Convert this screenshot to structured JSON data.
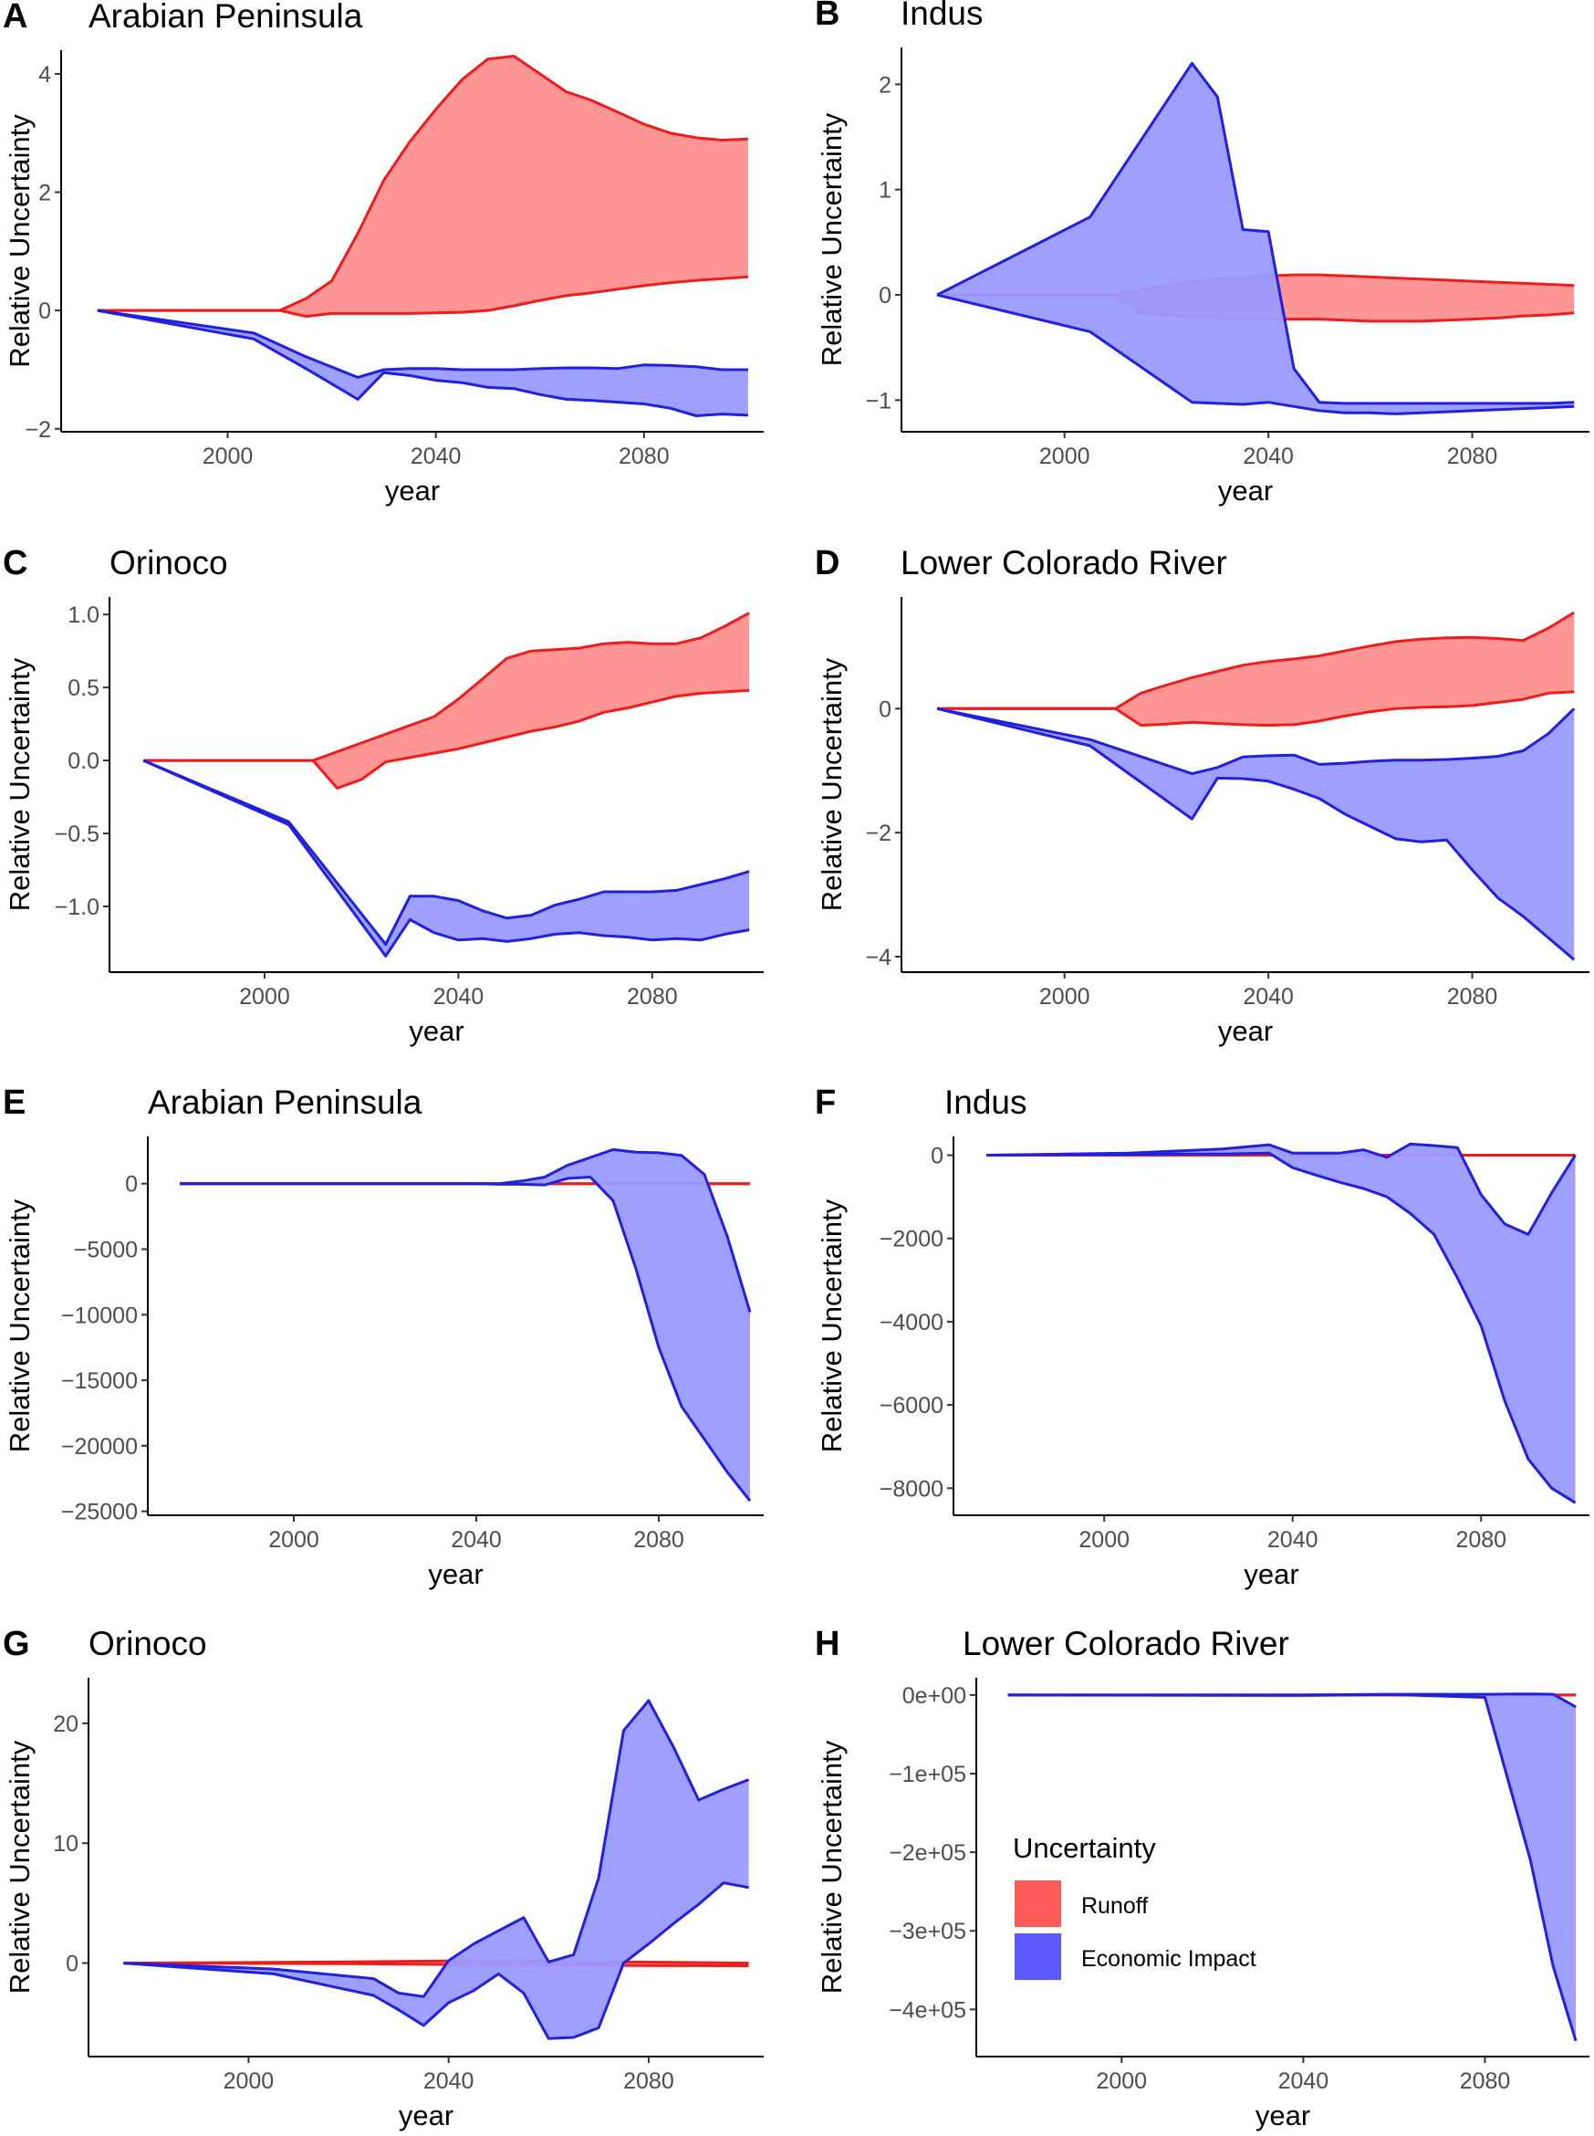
{
  "legend": {
    "title": "Uncertainty",
    "items": [
      {
        "label": "Runoff",
        "color": "#ff5a5a"
      },
      {
        "label": "Economic Impact",
        "color": "#5a5aff"
      }
    ]
  },
  "colors": {
    "runoff_line": "#ee1c1c",
    "runoff_fill": "#ff9090",
    "econ_line": "#2020dd",
    "econ_fill": "#9a9aff"
  },
  "chart_data": [
    {
      "id": "A",
      "type": "area",
      "letter": "A",
      "title": "Arabian Peninsula",
      "xlabel": "year",
      "ylabel": "Relative Uncertainty",
      "xlim": [
        1968,
        2103
      ],
      "ylim": [
        -2.05,
        4.4
      ],
      "xticks": [
        2000,
        2040,
        2080
      ],
      "yticks": [
        -2,
        0,
        2,
        4
      ],
      "ytick_labels": [
        "−2",
        "0",
        "2",
        "4"
      ],
      "series": [
        {
          "name": "Runoff",
          "x": [
            1975,
            2005,
            2010,
            2015,
            2020,
            2025,
            2030,
            2035,
            2040,
            2045,
            2050,
            2055,
            2060,
            2065,
            2070,
            2075,
            2080,
            2085,
            2090,
            2095,
            2100
          ],
          "upper": [
            0,
            0,
            0,
            0.2,
            0.5,
            1.3,
            2.2,
            2.85,
            3.4,
            3.9,
            4.25,
            4.3,
            4.0,
            3.7,
            3.55,
            3.35,
            3.15,
            3.0,
            2.92,
            2.88,
            2.9
          ],
          "lower": [
            0,
            0,
            0,
            -0.1,
            -0.05,
            -0.05,
            -0.05,
            -0.05,
            -0.04,
            -0.03,
            0,
            0.08,
            0.17,
            0.25,
            0.3,
            0.36,
            0.42,
            0.47,
            0.51,
            0.54,
            0.57
          ]
        },
        {
          "name": "Economic Impact",
          "x": [
            1975,
            2005,
            2015,
            2025,
            2030,
            2035,
            2040,
            2045,
            2050,
            2055,
            2060,
            2065,
            2070,
            2075,
            2080,
            2085,
            2090,
            2095,
            2100
          ],
          "upper": [
            0,
            -0.38,
            -0.78,
            -1.13,
            -1.0,
            -0.98,
            -0.98,
            -1.0,
            -1.0,
            -1.0,
            -0.98,
            -0.97,
            -0.97,
            -0.98,
            -0.92,
            -0.93,
            -0.95,
            -1.0,
            -1.0
          ],
          "lower": [
            0,
            -0.48,
            -0.98,
            -1.5,
            -1.05,
            -1.1,
            -1.18,
            -1.22,
            -1.3,
            -1.32,
            -1.42,
            -1.5,
            -1.52,
            -1.55,
            -1.58,
            -1.65,
            -1.78,
            -1.75,
            -1.77
          ]
        }
      ]
    },
    {
      "id": "B",
      "type": "area",
      "letter": "B",
      "title": "Indus",
      "xlabel": "year",
      "ylabel": "Relative Uncertainty",
      "xlim": [
        1968,
        2103
      ],
      "ylim": [
        -1.3,
        2.35
      ],
      "xticks": [
        2000,
        2040,
        2080
      ],
      "yticks": [
        -1,
        0,
        1,
        2
      ],
      "ytick_labels": [
        "−1",
        "0",
        "1",
        "2"
      ],
      "series": [
        {
          "name": "Runoff",
          "x": [
            1975,
            2010,
            2015,
            2020,
            2025,
            2030,
            2035,
            2040,
            2045,
            2050,
            2055,
            2060,
            2065,
            2070,
            2075,
            2080,
            2085,
            2090,
            2095,
            2100
          ],
          "upper": [
            0,
            0,
            0.05,
            0.08,
            0.12,
            0.15,
            0.17,
            0.18,
            0.19,
            0.19,
            0.18,
            0.17,
            0.16,
            0.15,
            0.14,
            0.13,
            0.12,
            0.11,
            0.1,
            0.09
          ],
          "lower": [
            0,
            0,
            -0.17,
            -0.19,
            -0.21,
            -0.22,
            -0.23,
            -0.23,
            -0.23,
            -0.23,
            -0.24,
            -0.25,
            -0.25,
            -0.25,
            -0.24,
            -0.23,
            -0.22,
            -0.2,
            -0.19,
            -0.17
          ]
        },
        {
          "name": "Economic Impact",
          "x": [
            1975,
            2005,
            2025,
            2030,
            2035,
            2040,
            2045,
            2050,
            2055,
            2060,
            2065,
            2070,
            2075,
            2080,
            2085,
            2090,
            2095,
            2100
          ],
          "upper": [
            0,
            0.74,
            2.2,
            1.88,
            0.62,
            0.6,
            -0.7,
            -1.02,
            -1.03,
            -1.03,
            -1.03,
            -1.03,
            -1.03,
            -1.03,
            -1.03,
            -1.03,
            -1.03,
            -1.02
          ],
          "lower": [
            0,
            -0.35,
            -1.02,
            -1.03,
            -1.04,
            -1.02,
            -1.06,
            -1.1,
            -1.12,
            -1.12,
            -1.13,
            -1.12,
            -1.11,
            -1.1,
            -1.09,
            -1.08,
            -1.07,
            -1.06
          ]
        }
      ]
    },
    {
      "id": "C",
      "type": "area",
      "letter": "C",
      "title": "Orinoco",
      "xlabel": "year",
      "ylabel": "Relative Uncertainty",
      "xlim": [
        1968,
        2103
      ],
      "ylim": [
        -1.45,
        1.12
      ],
      "xticks": [
        2000,
        2040,
        2080
      ],
      "yticks": [
        -1.0,
        -0.5,
        0.0,
        0.5,
        1.0
      ],
      "ytick_labels": [
        "−1.0",
        "−0.5",
        "0.0",
        "0.5",
        "1.0"
      ],
      "series": [
        {
          "name": "Runoff",
          "x": [
            1975,
            2010,
            2015,
            2020,
            2025,
            2030,
            2035,
            2040,
            2045,
            2050,
            2055,
            2060,
            2065,
            2070,
            2075,
            2080,
            2085,
            2090,
            2095,
            2100
          ],
          "upper": [
            0,
            0,
            0.06,
            0.12,
            0.18,
            0.24,
            0.3,
            0.42,
            0.56,
            0.7,
            0.75,
            0.76,
            0.77,
            0.8,
            0.81,
            0.8,
            0.8,
            0.84,
            0.92,
            1.01
          ],
          "lower": [
            0,
            0,
            -0.19,
            -0.13,
            -0.01,
            0.02,
            0.05,
            0.08,
            0.12,
            0.16,
            0.2,
            0.23,
            0.27,
            0.33,
            0.36,
            0.4,
            0.44,
            0.46,
            0.47,
            0.48
          ]
        },
        {
          "name": "Economic Impact",
          "x": [
            1975,
            2005,
            2025,
            2030,
            2035,
            2040,
            2045,
            2050,
            2055,
            2060,
            2065,
            2070,
            2075,
            2080,
            2085,
            2090,
            2095,
            2100
          ],
          "upper": [
            0,
            -0.42,
            -1.26,
            -0.93,
            -0.93,
            -0.96,
            -1.03,
            -1.08,
            -1.06,
            -0.99,
            -0.95,
            -0.9,
            -0.9,
            -0.9,
            -0.89,
            -0.85,
            -0.81,
            -0.76
          ],
          "lower": [
            0,
            -0.44,
            -1.34,
            -1.09,
            -1.18,
            -1.23,
            -1.22,
            -1.24,
            -1.22,
            -1.19,
            -1.18,
            -1.2,
            -1.21,
            -1.23,
            -1.22,
            -1.23,
            -1.19,
            -1.16
          ]
        }
      ]
    },
    {
      "id": "D",
      "type": "area",
      "letter": "D",
      "title": "Lower Colorado River",
      "xlabel": "year",
      "ylabel": "Relative Uncertainty",
      "xlim": [
        1968,
        2103
      ],
      "ylim": [
        -4.25,
        1.8
      ],
      "xticks": [
        2000,
        2040,
        2080
      ],
      "yticks": [
        -4,
        -2,
        0
      ],
      "ytick_labels": [
        "−4",
        "−2",
        "0"
      ],
      "series": [
        {
          "name": "Runoff",
          "x": [
            1975,
            2010,
            2015,
            2020,
            2025,
            2030,
            2035,
            2040,
            2045,
            2050,
            2055,
            2060,
            2065,
            2070,
            2075,
            2080,
            2085,
            2090,
            2095,
            2100
          ],
          "upper": [
            0,
            0,
            0.25,
            0.38,
            0.5,
            0.6,
            0.7,
            0.76,
            0.8,
            0.85,
            0.93,
            1.01,
            1.08,
            1.12,
            1.14,
            1.15,
            1.13,
            1.1,
            1.3,
            1.55
          ],
          "lower": [
            0,
            0,
            -0.27,
            -0.25,
            -0.22,
            -0.24,
            -0.26,
            -0.27,
            -0.26,
            -0.2,
            -0.12,
            -0.05,
            0.0,
            0.02,
            0.03,
            0.05,
            0.1,
            0.15,
            0.25,
            0.27
          ]
        },
        {
          "name": "Economic Impact",
          "x": [
            1975,
            2005,
            2025,
            2030,
            2035,
            2040,
            2045,
            2050,
            2055,
            2060,
            2065,
            2070,
            2075,
            2080,
            2085,
            2090,
            2095,
            2100
          ],
          "upper": [
            0,
            -0.5,
            -1.05,
            -0.95,
            -0.78,
            -0.76,
            -0.75,
            -0.9,
            -0.88,
            -0.85,
            -0.83,
            -0.83,
            -0.82,
            -0.8,
            -0.77,
            -0.68,
            -0.4,
            0.0
          ],
          "lower": [
            0,
            -0.6,
            -1.78,
            -1.12,
            -1.13,
            -1.17,
            -1.3,
            -1.45,
            -1.7,
            -1.9,
            -2.1,
            -2.15,
            -2.12,
            -2.6,
            -3.05,
            -3.35,
            -3.7,
            -4.05
          ]
        }
      ]
    },
    {
      "id": "E",
      "type": "area",
      "letter": "E",
      "title": "Arabian Peninsula",
      "xlabel": "year",
      "ylabel": "Relative Uncertainty",
      "xlim": [
        1968,
        2103
      ],
      "ylim": [
        -25300,
        3600
      ],
      "xticks": [
        2000,
        2040,
        2080
      ],
      "yticks": [
        -25000,
        -20000,
        -15000,
        -10000,
        -5000,
        0
      ],
      "ytick_labels": [
        "−25000",
        "−20000",
        "−15000",
        "−10000",
        "−5000",
        "0"
      ],
      "series": [
        {
          "name": "Runoff",
          "x": [
            1975,
            2100
          ],
          "upper": [
            0,
            0
          ],
          "lower": [
            0,
            0
          ]
        },
        {
          "name": "Economic Impact",
          "x": [
            1975,
            2040,
            2045,
            2050,
            2055,
            2060,
            2065,
            2070,
            2075,
            2080,
            2085,
            2090,
            2095,
            2100
          ],
          "upper": [
            0,
            0,
            0,
            200,
            500,
            1400,
            2000,
            2600,
            2400,
            2350,
            2150,
            700,
            -4000,
            -9800
          ],
          "lower": [
            0,
            0,
            -50,
            -50,
            -100,
            400,
            500,
            -1300,
            -6500,
            -12500,
            -17000,
            -19500,
            -22000,
            -24200
          ]
        }
      ]
    },
    {
      "id": "F",
      "type": "area",
      "letter": "F",
      "title": "Indus",
      "xlabel": "year",
      "ylabel": "Relative Uncertainty",
      "xlim": [
        1968,
        2103
      ],
      "ylim": [
        -8650,
        450
      ],
      "xticks": [
        2000,
        2040,
        2080
      ],
      "yticks": [
        -8000,
        -6000,
        -4000,
        -2000,
        0
      ],
      "ytick_labels": [
        "−8000",
        "−6000",
        "−4000",
        "−2000",
        "0"
      ],
      "series": [
        {
          "name": "Runoff",
          "x": [
            1975,
            2100
          ],
          "upper": [
            0,
            0
          ],
          "lower": [
            0,
            0
          ]
        },
        {
          "name": "Economic Impact",
          "x": [
            1975,
            2005,
            2015,
            2025,
            2035,
            2040,
            2045,
            2050,
            2055,
            2060,
            2065,
            2070,
            2075,
            2080,
            2085,
            2090,
            2095,
            2100
          ],
          "upper": [
            0,
            50,
            100,
            150,
            250,
            50,
            50,
            50,
            130,
            -50,
            270,
            230,
            180,
            -950,
            -1650,
            -1900,
            -900,
            0
          ],
          "lower": [
            0,
            20,
            30,
            30,
            50,
            -300,
            -480,
            -650,
            -800,
            -1000,
            -1400,
            -1900,
            -2950,
            -4100,
            -5900,
            -7300,
            -8000,
            -8350
          ]
        }
      ]
    },
    {
      "id": "G",
      "type": "area",
      "letter": "G",
      "title": "Orinoco",
      "xlabel": "year",
      "ylabel": "Relative Uncertainty",
      "xlim": [
        1968,
        2103
      ],
      "ylim": [
        -7.8,
        23.8
      ],
      "xticks": [
        2000,
        2040,
        2080
      ],
      "yticks": [
        0,
        10,
        20
      ],
      "ytick_labels": [
        "0",
        "10",
        "20"
      ],
      "series": [
        {
          "name": "Runoff",
          "x": [
            1975,
            2020,
            2040,
            2060,
            2080,
            2100
          ],
          "upper": [
            0,
            0.1,
            0.18,
            0.15,
            0.08,
            0.0
          ],
          "lower": [
            0,
            -0.05,
            -0.12,
            -0.15,
            -0.2,
            -0.22
          ]
        },
        {
          "name": "Economic Impact",
          "x": [
            1975,
            2005,
            2025,
            2030,
            2035,
            2040,
            2045,
            2050,
            2055,
            2060,
            2065,
            2070,
            2075,
            2080,
            2085,
            2090,
            2095,
            2100
          ],
          "upper": [
            0,
            -0.5,
            -1.3,
            -2.5,
            -2.8,
            0.2,
            1.6,
            2.7,
            3.8,
            0.1,
            0.7,
            7.1,
            19.4,
            21.9,
            18.0,
            13.6,
            14.5,
            15.3
          ],
          "lower": [
            0,
            -0.9,
            -2.7,
            -3.9,
            -5.2,
            -3.3,
            -2.3,
            -0.9,
            -2.5,
            -6.3,
            -6.2,
            -5.4,
            0.0,
            1.6,
            3.3,
            4.9,
            6.7,
            6.3
          ]
        }
      ]
    },
    {
      "id": "H",
      "type": "area",
      "letter": "H",
      "title": "Lower Colorado River",
      "xlabel": "year",
      "ylabel": "Relative Uncertainty",
      "xlim": [
        1968,
        2103
      ],
      "ylim": [
        -460000,
        22000
      ],
      "xticks": [
        2000,
        2040,
        2080
      ],
      "yticks": [
        -400000,
        -300000,
        -200000,
        -100000,
        0
      ],
      "ytick_labels": [
        "−4e+05",
        "−3e+05",
        "−2e+05",
        "−1e+05",
        "0e+00"
      ],
      "series": [
        {
          "name": "Runoff",
          "x": [
            1975,
            2100
          ],
          "upper": [
            0,
            0
          ],
          "lower": [
            0,
            0
          ]
        },
        {
          "name": "Economic Impact",
          "x": [
            1975,
            2040,
            2060,
            2080,
            2090,
            2095,
            2100
          ],
          "upper": [
            0,
            0,
            1000,
            1000,
            1500,
            1000,
            -15000
          ],
          "lower": [
            0,
            -500,
            500,
            -3000,
            -210000,
            -345000,
            -440000
          ]
        }
      ]
    }
  ]
}
